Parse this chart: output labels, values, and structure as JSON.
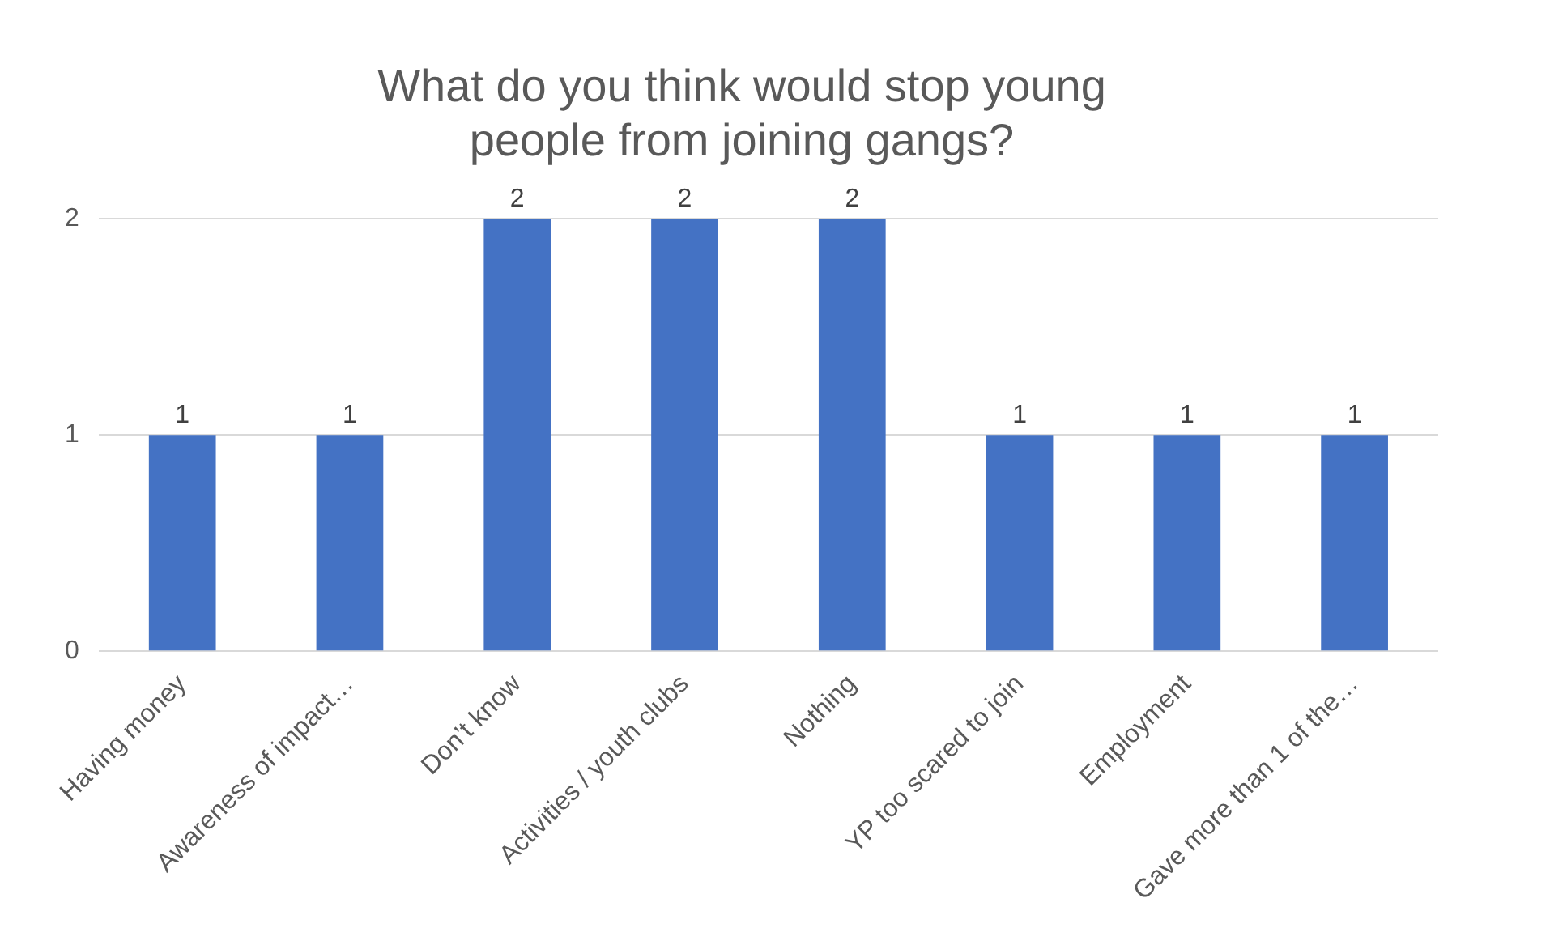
{
  "chart_data": {
    "type": "bar",
    "title": "What do you think would stop young people from joining gangs?",
    "categories": [
      "Having money",
      "Awareness of impact…",
      "Don’t know",
      "Activities / youth clubs",
      "Nothing",
      "YP too scared to join",
      "Employment",
      "Gave more than 1 of the…"
    ],
    "values": [
      1,
      1,
      2,
      2,
      2,
      1,
      1,
      1
    ],
    "color": "#4472c4",
    "ylim": [
      0,
      2
    ],
    "yticks": [
      0,
      1,
      2
    ],
    "grid": "y",
    "data_labels": true
  }
}
